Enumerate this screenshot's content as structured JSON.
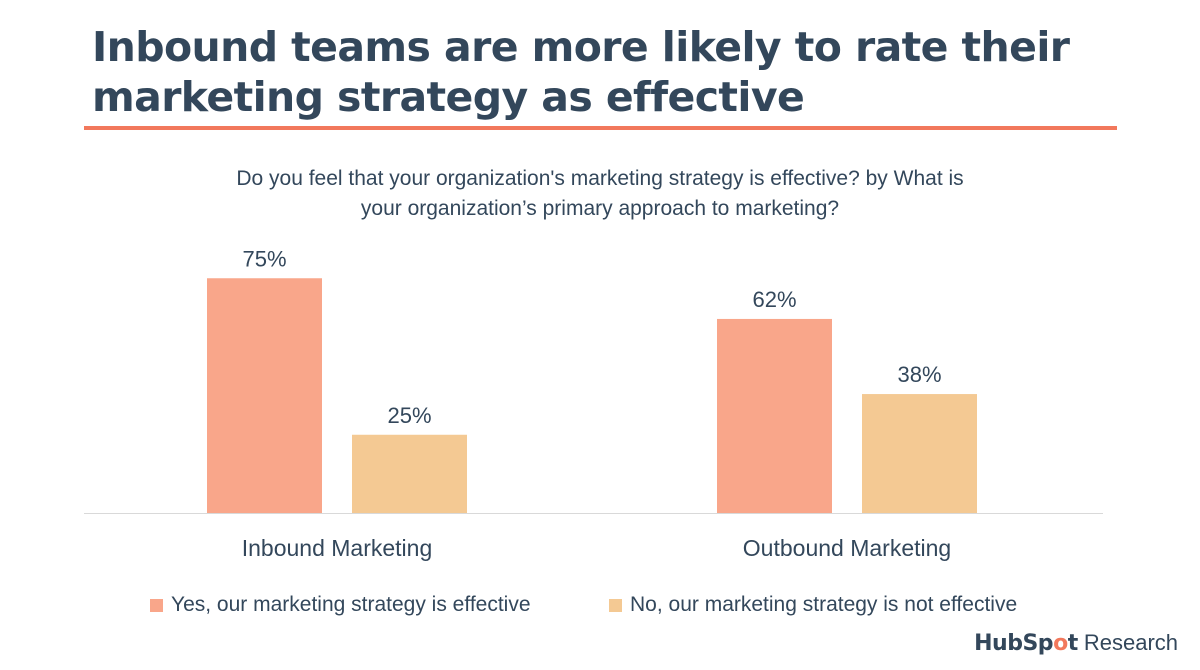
{
  "title_lines": [
    "Inbound teams are more likely to rate their",
    "marketing strategy as effective"
  ],
  "subtitle_lines": [
    "Do you feel that your organization's marketing strategy is effective? by What is",
    "your organization’s primary approach to marketing?"
  ],
  "colors": {
    "title": "#33475b",
    "rule": "#f2785c",
    "yes": "#f9a68a",
    "no": "#f4c993",
    "axis": "#d9d9d9"
  },
  "chart_data": {
    "type": "bar",
    "title": "Inbound teams are more likely to rate their marketing strategy as effective",
    "subtitle": "Do you feel that your organization's marketing strategy is effective? by What is your organization’s primary approach to marketing?",
    "categories": [
      "Inbound Marketing",
      "Outbound Marketing"
    ],
    "series": [
      {
        "name": "Yes, our marketing strategy is effective",
        "values": [
          75,
          62
        ],
        "labels": [
          "75%",
          "62%"
        ]
      },
      {
        "name": "No, our marketing strategy is not effective",
        "values": [
          25,
          38
        ],
        "labels": [
          "25%",
          "38%"
        ]
      }
    ],
    "ylim": [
      0,
      100
    ],
    "xlabel": "",
    "ylabel": "",
    "grid": false,
    "legend_position": "bottom"
  },
  "legend": {
    "yes_label": "Yes, our marketing strategy is effective",
    "no_label": "No, our marketing strategy is not effective"
  },
  "brand": {
    "hub": "HubSp",
    "o": "o",
    "t": "t",
    "suffix": "Research"
  }
}
